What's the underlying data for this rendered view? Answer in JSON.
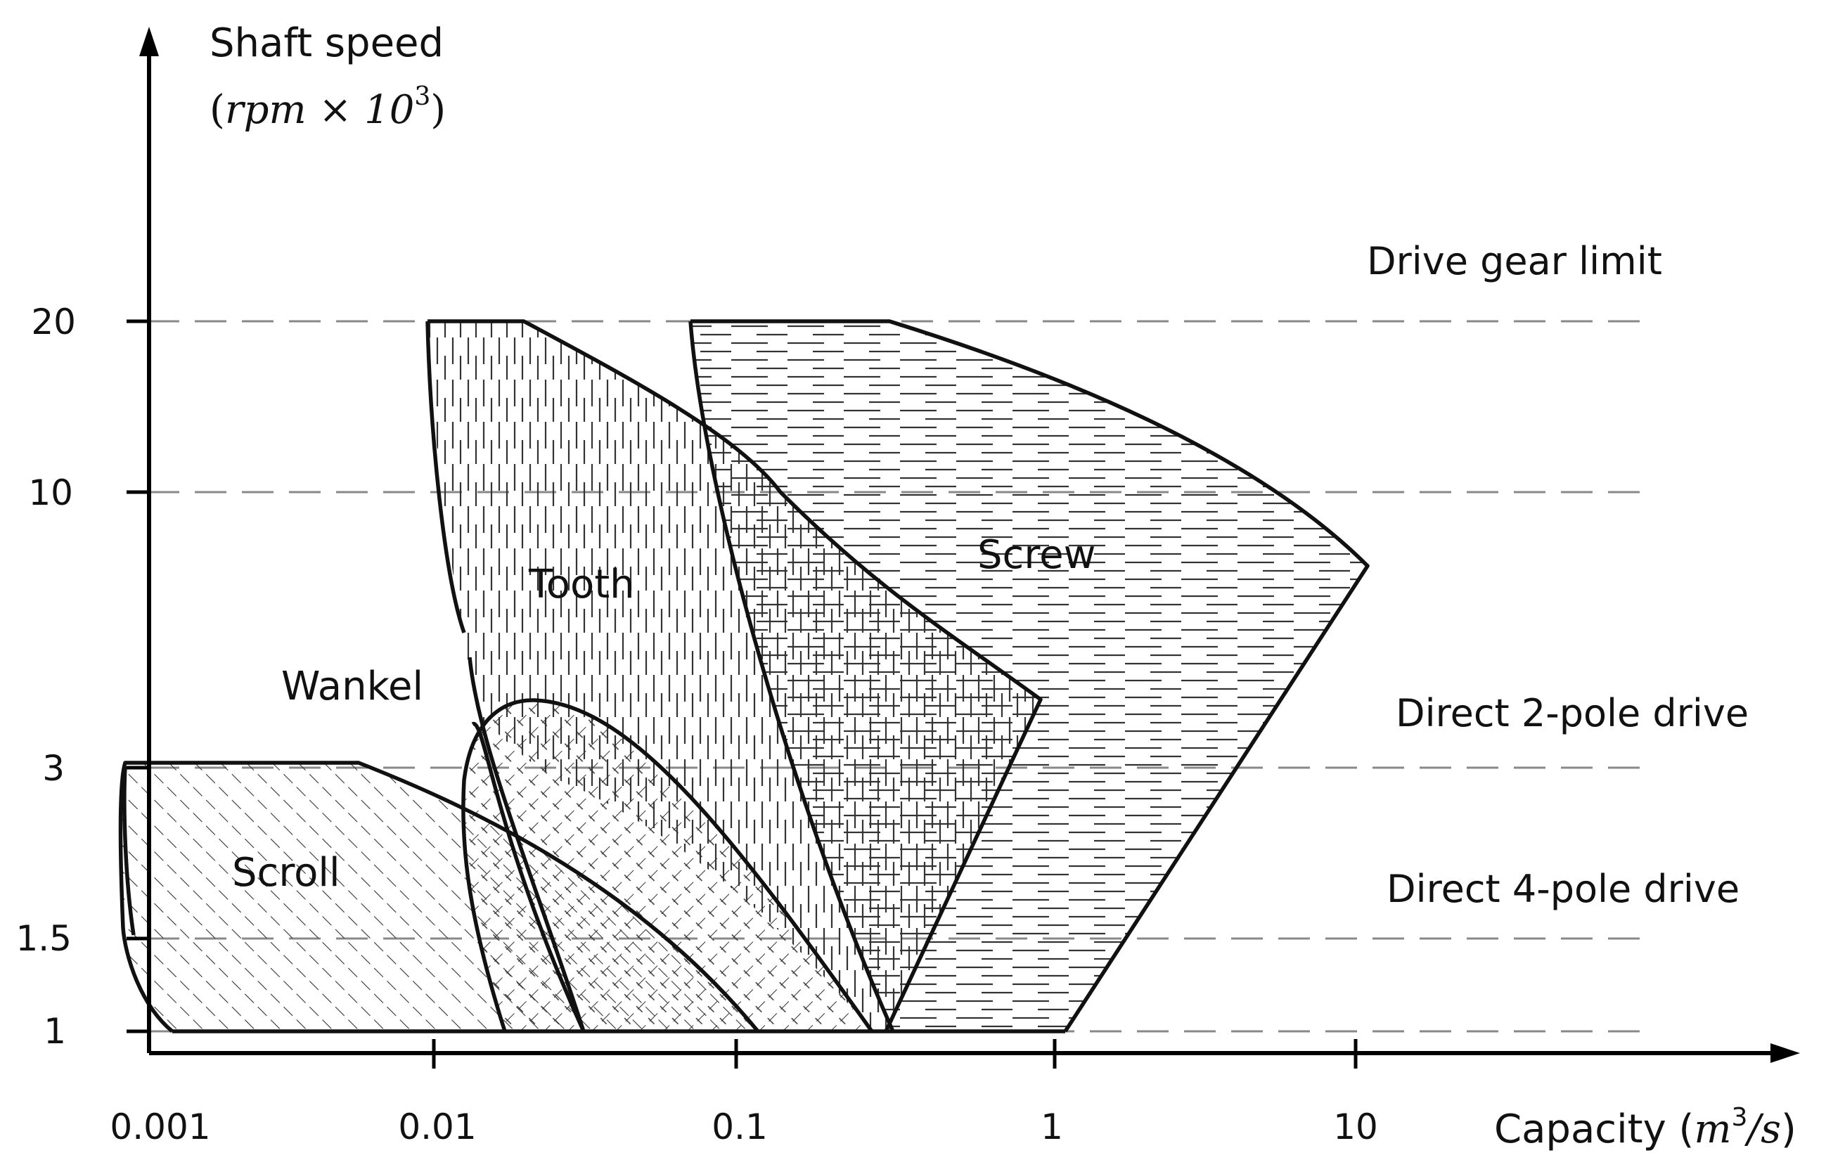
{
  "y_axis": {
    "title": "Shaft speed",
    "unit_prefix": "(",
    "unit_math": "rpm × 10",
    "unit_exp": "3",
    "unit_suffix": ")",
    "ticks": [
      "20",
      "10",
      "3",
      "1.5",
      "1"
    ]
  },
  "x_axis": {
    "title": "Capacity (",
    "unit_math": "m",
    "unit_exp": "3",
    "unit_tail": "/s",
    "unit_suffix": ")",
    "ticks": [
      "0.001",
      "0.01",
      "0.1",
      "1",
      "10"
    ]
  },
  "limits": {
    "drive_gear": "Drive gear limit",
    "two_pole": "Direct 2-pole drive",
    "four_pole": "Direct 4-pole drive"
  },
  "regions": {
    "scroll": "Scroll",
    "wankel": "Wankel",
    "tooth": "Tooth",
    "screw": "Screw"
  },
  "colors": {
    "outline": "#111111",
    "hatch": "#333333",
    "dash": "#888888"
  }
}
